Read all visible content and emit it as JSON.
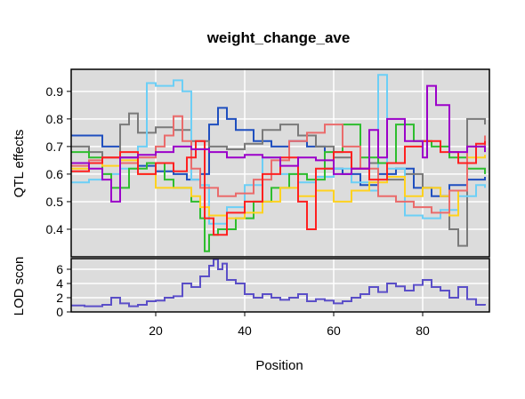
{
  "chart_data": [
    {
      "type": "line",
      "title": "weight_change_ave",
      "ylabel": "QTL effects",
      "xlim": [
        1,
        95
      ],
      "ylim": [
        0.3,
        0.98
      ],
      "x_ticks": [
        20,
        40,
        60,
        80
      ],
      "y_ticks": [
        0.4,
        0.5,
        0.6,
        0.7,
        0.8,
        0.9
      ],
      "y_tick_labels": [
        "0.4",
        "0.5",
        "0.6",
        "0.7",
        "0.8",
        "0.9"
      ],
      "grid": true,
      "background": "#dcdcdc",
      "series": [
        {
          "color": "#1f4fbf",
          "x": [
            1,
            5,
            8,
            12,
            16,
            20,
            24,
            27,
            30,
            32,
            34,
            36,
            38,
            42,
            46,
            50,
            54,
            58,
            62,
            66,
            70,
            74,
            78,
            82,
            86,
            90,
            94
          ],
          "values": [
            0.74,
            0.74,
            0.7,
            0.66,
            0.63,
            0.61,
            0.6,
            0.58,
            0.6,
            0.78,
            0.84,
            0.8,
            0.76,
            0.72,
            0.7,
            0.72,
            0.7,
            0.62,
            0.6,
            0.56,
            0.6,
            0.62,
            0.55,
            0.52,
            0.56,
            0.58,
            0.59
          ]
        },
        {
          "color": "#7a7a7a",
          "x": [
            1,
            5,
            8,
            12,
            14,
            16,
            20,
            24,
            28,
            32,
            36,
            40,
            44,
            48,
            52,
            56,
            60,
            64,
            68,
            72,
            76,
            80,
            84,
            86,
            88,
            90,
            94
          ],
          "values": [
            0.7,
            0.68,
            0.66,
            0.78,
            0.82,
            0.75,
            0.77,
            0.76,
            0.72,
            0.7,
            0.69,
            0.71,
            0.76,
            0.78,
            0.74,
            0.7,
            0.66,
            0.62,
            0.64,
            0.58,
            0.6,
            0.55,
            0.52,
            0.4,
            0.34,
            0.8,
            0.78
          ]
        },
        {
          "color": "#6ccff6",
          "x": [
            1,
            5,
            8,
            12,
            16,
            18,
            20,
            24,
            26,
            28,
            30,
            32,
            36,
            40,
            44,
            48,
            52,
            56,
            60,
            64,
            68,
            70,
            72,
            76,
            80,
            84,
            88,
            92,
            94
          ],
          "values": [
            0.57,
            0.58,
            0.6,
            0.62,
            0.7,
            0.93,
            0.92,
            0.94,
            0.9,
            0.58,
            0.56,
            0.42,
            0.48,
            0.56,
            0.66,
            0.6,
            0.57,
            0.59,
            0.62,
            0.57,
            0.54,
            0.96,
            0.62,
            0.45,
            0.44,
            0.47,
            0.52,
            0.56,
            0.55
          ]
        },
        {
          "color": "#2ebd2e",
          "x": [
            1,
            5,
            8,
            10,
            14,
            18,
            22,
            24,
            26,
            28,
            30,
            31,
            32,
            34,
            38,
            42,
            46,
            50,
            54,
            58,
            62,
            66,
            70,
            74,
            78,
            82,
            86,
            90,
            94
          ],
          "values": [
            0.68,
            0.66,
            0.6,
            0.55,
            0.62,
            0.64,
            0.58,
            0.55,
            0.55,
            0.5,
            0.44,
            0.32,
            0.38,
            0.4,
            0.44,
            0.5,
            0.55,
            0.6,
            0.58,
            0.68,
            0.78,
            0.66,
            0.64,
            0.78,
            0.72,
            0.7,
            0.66,
            0.62,
            0.6
          ]
        },
        {
          "color": "#ffd21f",
          "x": [
            1,
            5,
            8,
            12,
            16,
            20,
            24,
            28,
            30,
            32,
            36,
            40,
            44,
            48,
            52,
            56,
            60,
            64,
            68,
            72,
            76,
            80,
            84,
            86,
            88,
            90,
            94
          ],
          "values": [
            0.62,
            0.64,
            0.63,
            0.65,
            0.6,
            0.55,
            0.55,
            0.52,
            0.48,
            0.45,
            0.44,
            0.46,
            0.5,
            0.55,
            0.52,
            0.54,
            0.5,
            0.54,
            0.57,
            0.59,
            0.52,
            0.55,
            0.52,
            0.45,
            0.54,
            0.66,
            0.67
          ]
        },
        {
          "color": "#ea6b6b",
          "x": [
            1,
            5,
            8,
            12,
            16,
            20,
            22,
            24,
            26,
            28,
            30,
            34,
            38,
            42,
            46,
            50,
            54,
            58,
            62,
            66,
            70,
            74,
            78,
            82,
            86,
            90,
            94
          ],
          "values": [
            0.63,
            0.65,
            0.66,
            0.64,
            0.66,
            0.7,
            0.74,
            0.81,
            0.72,
            0.62,
            0.55,
            0.52,
            0.53,
            0.58,
            0.65,
            0.72,
            0.75,
            0.78,
            0.7,
            0.62,
            0.52,
            0.5,
            0.48,
            0.46,
            0.54,
            0.7,
            0.74
          ]
        },
        {
          "color": "#ff2020",
          "x": [
            1,
            5,
            8,
            12,
            16,
            20,
            24,
            27,
            29,
            31,
            33,
            36,
            40,
            44,
            48,
            52,
            54,
            56,
            60,
            64,
            68,
            72,
            76,
            80,
            84,
            88,
            92,
            94
          ],
          "values": [
            0.61,
            0.64,
            0.66,
            0.68,
            0.6,
            0.64,
            0.61,
            0.66,
            0.72,
            0.44,
            0.38,
            0.46,
            0.5,
            0.6,
            0.66,
            0.5,
            0.4,
            0.62,
            0.68,
            0.62,
            0.58,
            0.64,
            0.7,
            0.72,
            0.68,
            0.64,
            0.71,
            0.72
          ]
        },
        {
          "color": "#9b00c9",
          "x": [
            1,
            5,
            8,
            10,
            12,
            16,
            20,
            24,
            28,
            32,
            36,
            40,
            44,
            48,
            52,
            56,
            60,
            64,
            68,
            70,
            72,
            76,
            80,
            81,
            83,
            86,
            90,
            94
          ],
          "values": [
            0.64,
            0.62,
            0.58,
            0.5,
            0.66,
            0.67,
            0.68,
            0.7,
            0.69,
            0.68,
            0.66,
            0.67,
            0.66,
            0.63,
            0.66,
            0.65,
            0.6,
            0.62,
            0.76,
            0.66,
            0.8,
            0.72,
            0.66,
            0.92,
            0.85,
            0.68,
            0.7,
            0.68
          ]
        }
      ]
    },
    {
      "type": "line",
      "ylabel": "LOD scon",
      "xlabel": "Position",
      "xlim": [
        1,
        95
      ],
      "ylim": [
        0,
        7.5
      ],
      "x_ticks": [
        20,
        40,
        60,
        80
      ],
      "x_tick_labels": [
        "20",
        "40",
        "60",
        "80"
      ],
      "y_ticks": [
        0,
        2,
        4,
        6
      ],
      "y_tick_labels": [
        "0",
        "2",
        "4",
        "6"
      ],
      "grid": true,
      "background": "#dcdcdc",
      "series": [
        {
          "color": "#5b4fc8",
          "x": [
            1,
            4,
            6,
            8,
            10,
            12,
            14,
            16,
            18,
            20,
            22,
            24,
            26,
            28,
            30,
            32,
            33,
            34,
            35,
            36,
            38,
            40,
            42,
            44,
            46,
            48,
            50,
            52,
            54,
            56,
            58,
            60,
            62,
            64,
            66,
            68,
            70,
            72,
            74,
            76,
            78,
            80,
            82,
            84,
            86,
            88,
            90,
            92,
            94
          ],
          "values": [
            0.9,
            0.8,
            0.8,
            1.0,
            2.0,
            1.2,
            0.8,
            1.0,
            1.5,
            1.6,
            2.0,
            2.2,
            4.0,
            3.5,
            5.0,
            6.5,
            7.4,
            6.0,
            6.8,
            4.5,
            4.0,
            2.5,
            2.0,
            2.5,
            2.0,
            1.7,
            2.0,
            2.5,
            1.5,
            1.8,
            1.6,
            1.2,
            1.5,
            2.0,
            2.5,
            3.5,
            2.8,
            4.0,
            3.6,
            3.0,
            3.8,
            4.5,
            3.5,
            3.0,
            2.0,
            3.5,
            1.8,
            1.0,
            0.9
          ]
        }
      ]
    }
  ]
}
